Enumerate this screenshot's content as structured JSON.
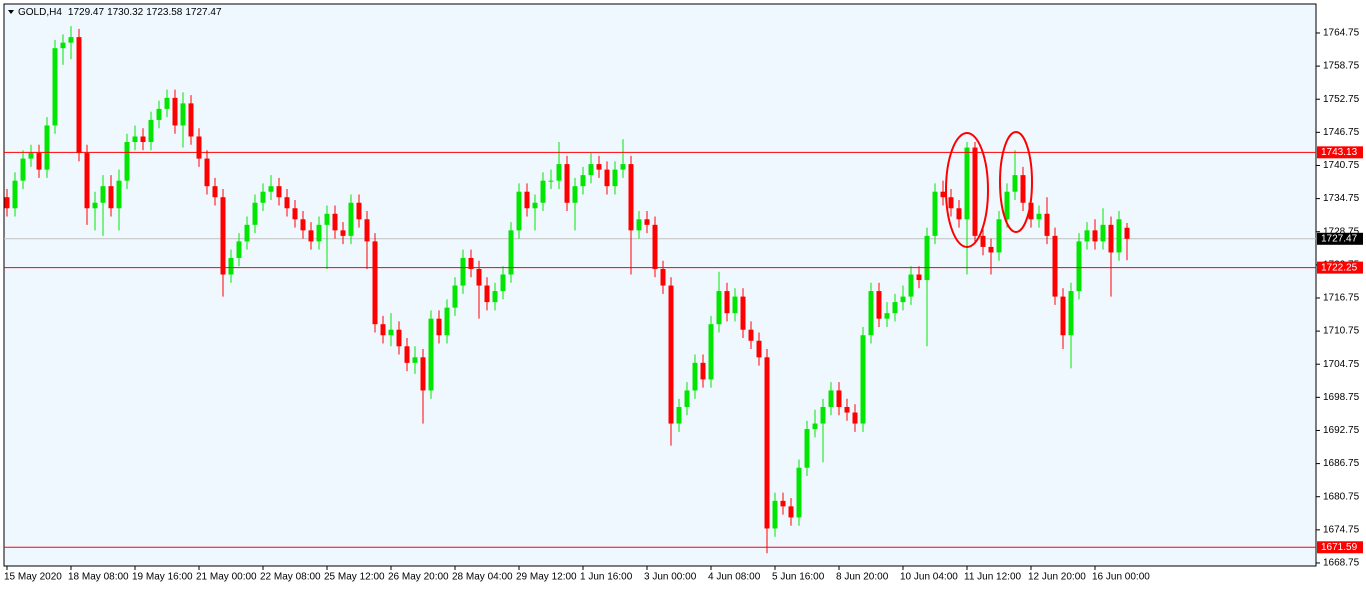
{
  "chart_data": {
    "type": "candlestick",
    "symbol": "GOLD,H4",
    "bull_color": "#00e600",
    "bear_color": "#ff0000",
    "level_color": "#ff0000",
    "last_price_color": "#c0c0c0",
    "open": [
      1735,
      1733,
      1738,
      1742,
      1743,
      1740,
      1748,
      1762,
      1763,
      1764,
      1743,
      1733,
      1734,
      1737,
      1733,
      1738,
      1745,
      1746,
      1745,
      1749,
      1751,
      1753,
      1748,
      1752,
      1746,
      1742,
      1737,
      1735,
      1721,
      1724,
      1727,
      1730,
      1734,
      1736,
      1737,
      1735,
      1733,
      1731,
      1729,
      1727,
      1730,
      1732,
      1729,
      1728,
      1734,
      1731,
      1727,
      1712,
      1710,
      1711,
      1708,
      1705,
      1706,
      1700,
      1713,
      1710,
      1715,
      1719,
      1724,
      1722,
      1719,
      1716,
      1718,
      1721,
      1729,
      1736,
      1733,
      1734,
      1738,
      1738,
      1741,
      1734,
      1737,
      1739,
      1741,
      1740,
      1737,
      1740,
      1741,
      1729,
      1731,
      1730,
      1722,
      1719,
      1694,
      1697,
      1700,
      1705,
      1702,
      1712,
      1718,
      1714,
      1717,
      1711,
      1709,
      1706,
      1675,
      1680,
      1679,
      1677,
      1686,
      1693,
      1694,
      1697,
      1700,
      1697,
      1696,
      1694,
      1710,
      1718,
      1713,
      1714,
      1716,
      1717,
      1721,
      1720,
      1728,
      1736,
      1735,
      1733,
      1731,
      1744,
      1728,
      1726,
      1725,
      1731,
      1736,
      1739,
      1734,
      1731,
      1732,
      1728,
      1717,
      1710,
      1718,
      1727,
      1729,
      1727,
      1730,
      1725,
      1729.47
    ],
    "high": [
      1736.5,
      1739.5,
      1743.5,
      1744.5,
      1744.5,
      1749.5,
      1763.5,
      1764.5,
      1766,
      1765.5,
      1744.5,
      1736,
      1739,
      1739,
      1740,
      1746.5,
      1748,
      1747.5,
      1750.5,
      1752.5,
      1754.5,
      1754.5,
      1754,
      1753.5,
      1747.5,
      1743.5,
      1738.5,
      1736.5,
      1725.5,
      1728.5,
      1731.5,
      1735.5,
      1737.5,
      1739,
      1738.5,
      1736.5,
      1734.5,
      1732.5,
      1730.5,
      1731.5,
      1733.5,
      1733.5,
      1730.5,
      1735.5,
      1735.5,
      1732.5,
      1728.5,
      1713.5,
      1714,
      1712.5,
      1709.5,
      1708,
      1707.5,
      1714.5,
      1714.5,
      1716.5,
      1720.5,
      1725.5,
      1725.5,
      1723.5,
      1720.5,
      1719.5,
      1722.5,
      1730.5,
      1737.5,
      1737.5,
      1735.5,
      1739.5,
      1740,
      1745,
      1742.5,
      1738.5,
      1740.5,
      1743,
      1742.5,
      1741.5,
      1741.5,
      1745.5,
      1742.5,
      1732.5,
      1732.5,
      1731.5,
      1723.5,
      1720.5,
      1698.5,
      1701.5,
      1706.5,
      1706.5,
      1713.5,
      1721.5,
      1719.5,
      1718.5,
      1718.5,
      1712.5,
      1710.5,
      1707.5,
      1681.5,
      1681.5,
      1680.5,
      1687.5,
      1694.5,
      1696.5,
      1698.5,
      1701.5,
      1701.5,
      1698.5,
      1697.5,
      1711.5,
      1719.5,
      1719.5,
      1716,
      1717.5,
      1719,
      1722.5,
      1722.5,
      1729.5,
      1737.5,
      1738,
      1736.5,
      1734.5,
      1745,
      1745,
      1729.5,
      1727.5,
      1732.5,
      1737.5,
      1743.5,
      1740.5,
      1735.5,
      1733.5,
      1735,
      1729.5,
      1718.5,
      1719.5,
      1728.5,
      1730.5,
      1731,
      1733,
      1731.5,
      1732.5,
      1730.32
    ],
    "low": [
      1731.5,
      1731.5,
      1736.5,
      1740.5,
      1738.5,
      1738.5,
      1746.5,
      1759,
      1760,
      1741.5,
      1730,
      1729,
      1728,
      1731.5,
      1729,
      1736.5,
      1743.5,
      1743.5,
      1743.5,
      1747.5,
      1749.5,
      1746.5,
      1744,
      1744.5,
      1740.5,
      1735.5,
      1733.5,
      1717,
      1719.5,
      1722.5,
      1725.5,
      1728.5,
      1732.5,
      1734.5,
      1733.5,
      1731.5,
      1729.5,
      1727.5,
      1725.5,
      1725.5,
      1722,
      1727.5,
      1726.5,
      1726.5,
      1729.5,
      1722,
      1710.5,
      1708.5,
      1708,
      1706.5,
      1703.5,
      1703,
      1694,
      1698.5,
      1708.5,
      1708.5,
      1713.5,
      1717.5,
      1720.5,
      1713,
      1714.5,
      1714.5,
      1716.5,
      1719.5,
      1727.5,
      1731.5,
      1729,
      1732.5,
      1736.5,
      1736.5,
      1732.5,
      1729,
      1735.5,
      1737.5,
      1738.5,
      1735.5,
      1735.5,
      1738.5,
      1721,
      1727.5,
      1728.5,
      1720.5,
      1717.5,
      1690,
      1692.5,
      1695.5,
      1698.5,
      1700.5,
      1700.5,
      1710.5,
      1712.5,
      1712.5,
      1709.5,
      1707.5,
      1704.5,
      1670.5,
      1673.5,
      1677.5,
      1675.5,
      1675.5,
      1684.5,
      1691.5,
      1687,
      1695.5,
      1695.5,
      1694.5,
      1692.5,
      1692.5,
      1708.5,
      1711.5,
      1711.5,
      1712.5,
      1714.5,
      1715.5,
      1718.5,
      1708,
      1726.5,
      1733.5,
      1731.5,
      1729.5,
      1721,
      1726.5,
      1724.5,
      1721,
      1723.5,
      1729.5,
      1734.5,
      1732.5,
      1729.5,
      1729.5,
      1726.5,
      1715.5,
      1707.5,
      1704,
      1716.5,
      1725.5,
      1725.5,
      1725.5,
      1717,
      1723.5,
      1723.58
    ],
    "close": [
      1733,
      1738,
      1742,
      1743,
      1740,
      1748,
      1762,
      1763,
      1764,
      1743,
      1733,
      1734,
      1737,
      1733,
      1738,
      1745,
      1746,
      1745,
      1749,
      1751,
      1753,
      1748,
      1752,
      1746,
      1742,
      1737,
      1735,
      1721,
      1724,
      1727,
      1730,
      1734,
      1736,
      1737,
      1735,
      1733,
      1731,
      1729,
      1727,
      1730,
      1732,
      1729,
      1728,
      1734,
      1731,
      1727,
      1712,
      1710,
      1711,
      1708,
      1705,
      1706,
      1700,
      1713,
      1710,
      1715,
      1719,
      1724,
      1722,
      1719,
      1716,
      1718,
      1721,
      1729,
      1736,
      1733,
      1734,
      1738,
      1738,
      1741,
      1734,
      1737,
      1739,
      1741,
      1740,
      1737,
      1740,
      1741,
      1729,
      1731,
      1730,
      1722,
      1719,
      1694,
      1697,
      1700,
      1705,
      1702,
      1712,
      1718,
      1714,
      1717,
      1711,
      1709,
      1706,
      1675,
      1680,
      1679,
      1677,
      1686,
      1693,
      1694,
      1697,
      1700,
      1697,
      1696,
      1694,
      1710,
      1718,
      1713,
      1714,
      1716,
      1717,
      1721,
      1720,
      1728,
      1736,
      1735,
      1733,
      1731,
      1744,
      1728,
      1726,
      1725,
      1731,
      1736,
      1739,
      1734,
      1731,
      1732,
      1728,
      1717,
      1710,
      1718,
      1727,
      1729,
      1727,
      1730,
      1725,
      1731,
      1727.47
    ],
    "ylim": [
      1668.2,
      1770.0
    ],
    "yticks": [
      1668.75,
      1674.75,
      1680.75,
      1686.75,
      1692.75,
      1698.75,
      1704.75,
      1710.75,
      1716.75,
      1722.75,
      1728.75,
      1734.75,
      1740.75,
      1746.75,
      1752.75,
      1758.75,
      1764.75
    ],
    "xticks": [
      {
        "value": 0,
        "label": "15 May 2020"
      },
      {
        "value": 8,
        "label": "18 May 08:00"
      },
      {
        "value": 16,
        "label": "19 May 16:00"
      },
      {
        "value": 24,
        "label": "21 May 00:00"
      },
      {
        "value": 32,
        "label": "22 May 08:00"
      },
      {
        "value": 40,
        "label": "25 May 12:00"
      },
      {
        "value": 48,
        "label": "26 May 20:00"
      },
      {
        "value": 56,
        "label": "28 May 04:00"
      },
      {
        "value": 64,
        "label": "29 May 12:00"
      },
      {
        "value": 72,
        "label": "1 Jun 16:00"
      },
      {
        "value": 80,
        "label": "3 Jun 00:00"
      },
      {
        "value": 88,
        "label": "4 Jun 08:00"
      },
      {
        "value": 96,
        "label": "5 Jun 16:00"
      },
      {
        "value": 104,
        "label": "8 Jun 20:00"
      },
      {
        "value": 112,
        "label": "10 Jun 04:00"
      },
      {
        "value": 120,
        "label": "11 Jun 12:00"
      },
      {
        "value": 128,
        "label": "12 Jun 20:00"
      },
      {
        "value": 136,
        "label": "16 Jun 00:00"
      }
    ],
    "levels": [
      1743.13,
      1722.25,
      1671.59
    ],
    "last_price": 1727.47
  }
}
